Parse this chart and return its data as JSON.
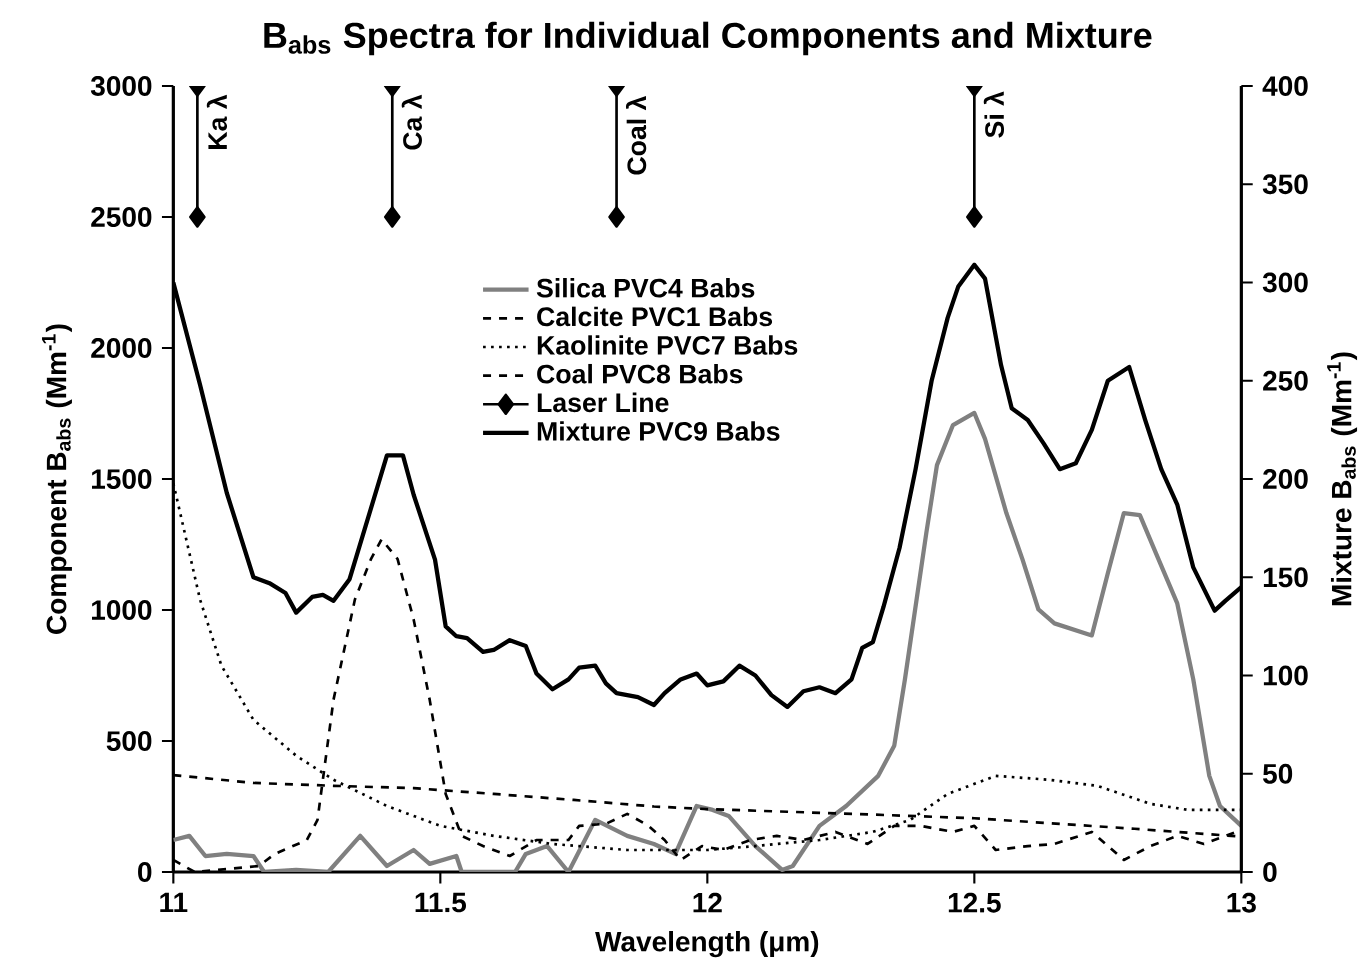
{
  "chart_data": {
    "type": "line",
    "title": "B$_{abs}$ Spectra for Individual Components and Mixture",
    "xlabel": "Wavelength (μm)",
    "ylabel": "Component B$_{abs}$ (Mm$^{-1}$)",
    "y2label": "Mixture B$_{abs}$ (Mm$^{-1}$)",
    "xlim": [
      11,
      13
    ],
    "xticks": [
      11,
      11.5,
      12,
      12.5,
      13
    ],
    "ylim": [
      0,
      3000
    ],
    "yticks": [
      0,
      500,
      1000,
      1500,
      2000,
      2500,
      3000
    ],
    "y2lim": [
      0,
      400
    ],
    "y2ticks": [
      0,
      50,
      100,
      150,
      200,
      250,
      300,
      350,
      400
    ],
    "legend": "top",
    "grid": false,
    "annotations": [
      {
        "text": "Ka λ",
        "x": 11.045,
        "y": 2830
      },
      {
        "text": "Ca λ",
        "x": 11.41,
        "y": 2830
      },
      {
        "text": "Coal λ",
        "x": 11.83,
        "y": 2780
      },
      {
        "text": "Si λ",
        "x": 12.5,
        "y": 2860
      }
    ],
    "series": [
      {
        "name": "Silica PVC4 Babs",
        "color": "#808080",
        "line_style": "solid",
        "marker": "none",
        "x": [
          11.0,
          11.03,
          11.06,
          11.1,
          11.15,
          11.17,
          11.23,
          11.29,
          11.35,
          11.4,
          11.45,
          11.48,
          11.53,
          11.54,
          11.64,
          11.66,
          11.7,
          11.74,
          11.79,
          11.85,
          11.9,
          11.94,
          11.98,
          12.01,
          12.04,
          12.09,
          12.14,
          12.16,
          12.21,
          12.26,
          12.32,
          12.35,
          12.37,
          12.41,
          12.43,
          12.46,
          12.5,
          12.52,
          12.56,
          12.59,
          12.62,
          12.65,
          12.72,
          12.75,
          12.78,
          12.81,
          12.84,
          12.88,
          12.91,
          12.94,
          12.96,
          13.0
        ],
        "values": [
          122,
          138,
          61,
          69,
          61,
          0,
          8,
          0,
          138,
          23,
          84,
          31,
          61,
          0,
          0,
          69,
          99,
          0,
          199,
          138,
          107,
          69,
          252,
          237,
          214,
          99,
          8,
          23,
          176,
          252,
          367,
          482,
          735,
          1293,
          1553,
          1706,
          1752,
          1653,
          1370,
          1194,
          1002,
          949,
          903,
          1140,
          1370,
          1362,
          1217,
          1025,
          735,
          367,
          252,
          176
        ]
      },
      {
        "name": "Calcite PVC1 Babs",
        "color": "#000000",
        "line_style": "dashed",
        "marker": "none",
        "x": [
          11.0,
          11.04,
          11.16,
          11.19,
          11.25,
          11.27,
          11.3,
          11.34,
          11.37,
          11.39,
          11.42,
          11.45,
          11.48,
          11.51,
          11.54,
          11.58,
          11.63,
          11.68,
          11.74,
          11.76,
          11.81,
          11.85,
          11.89,
          11.92,
          11.95,
          11.99,
          12.03,
          12.08,
          12.13,
          12.18,
          12.24,
          12.3,
          12.35,
          12.4,
          12.46,
          12.5,
          12.54,
          12.6,
          12.65,
          12.72,
          12.78,
          12.83,
          12.88,
          12.93,
          12.99
        ],
        "values": [
          46,
          0,
          23,
          69,
          122,
          199,
          658,
          1040,
          1194,
          1270,
          1194,
          964,
          658,
          298,
          138,
          99,
          61,
          122,
          122,
          176,
          184,
          222,
          176,
          122,
          46,
          99,
          84,
          122,
          138,
          122,
          153,
          107,
          176,
          176,
          153,
          176,
          84,
          99,
          107,
          153,
          46,
          99,
          138,
          107,
          153
        ]
      },
      {
        "name": "Kaolinite PVC7 Babs",
        "color": "#000000",
        "line_style": "dotted",
        "marker": "none",
        "x": [
          11.0,
          11.05,
          11.09,
          11.15,
          11.23,
          11.3,
          11.4,
          11.5,
          11.6,
          11.71,
          11.85,
          12.0,
          12.09,
          12.21,
          12.31,
          12.38,
          12.45,
          12.54,
          12.64,
          12.73,
          12.83,
          12.9,
          13.0
        ],
        "values": [
          1484,
          1040,
          788,
          581,
          444,
          352,
          252,
          176,
          138,
          107,
          84,
          84,
          99,
          122,
          153,
          199,
          298,
          367,
          352,
          329,
          260,
          237,
          237
        ]
      },
      {
        "name": "Coal PVC8 Babs",
        "color": "#000000",
        "line_style": "dashed",
        "marker": "none",
        "x": [
          11.0,
          11.15,
          11.3,
          11.45,
          11.6,
          11.75,
          11.9,
          12.0,
          12.15,
          12.3,
          12.5,
          12.65,
          12.8,
          12.9,
          13.0
        ],
        "values": [
          370,
          340,
          329,
          320,
          298,
          275,
          250,
          240,
          230,
          220,
          205,
          185,
          165,
          150,
          135
        ]
      },
      {
        "name": "Laser Line",
        "color": "#000000",
        "line_style": "solid",
        "marker": "diamond",
        "x": [
          11.045,
          11.045,
          null,
          11.41,
          11.41,
          null,
          11.83,
          11.83,
          null,
          12.5,
          12.5
        ],
        "values": [
          2500,
          3000,
          null,
          2500,
          3000,
          null,
          2500,
          3000,
          null,
          2500,
          3000
        ]
      },
      {
        "name": "Mixture PVC9 Babs",
        "color": "#000000",
        "line_style": "solid",
        "marker": "none",
        "axis": "y2",
        "x": [
          11.0,
          11.05,
          11.1,
          11.15,
          11.18,
          11.21,
          11.23,
          11.26,
          11.28,
          11.3,
          11.33,
          11.36,
          11.4,
          11.43,
          11.45,
          11.49,
          11.51,
          11.53,
          11.55,
          11.58,
          11.6,
          11.63,
          11.66,
          11.68,
          11.71,
          11.74,
          11.76,
          11.79,
          11.81,
          11.83,
          11.87,
          11.9,
          11.92,
          11.95,
          11.98,
          12.0,
          12.03,
          12.06,
          12.09,
          12.12,
          12.15,
          12.18,
          12.21,
          12.24,
          12.27,
          12.29,
          12.31,
          12.33,
          12.36,
          12.39,
          12.42,
          12.45,
          12.47,
          12.5,
          12.52,
          12.55,
          12.57,
          12.6,
          12.63,
          12.66,
          12.69,
          12.72,
          12.75,
          12.79,
          12.82,
          12.85,
          12.88,
          12.91,
          12.95,
          12.97,
          13.0
        ],
        "values": [
          300,
          248,
          193,
          150,
          147,
          142,
          132,
          140,
          141,
          138,
          149,
          176,
          212,
          212,
          192,
          159,
          125,
          120,
          119,
          112,
          113,
          118,
          115,
          101,
          93,
          98,
          104,
          105,
          96,
          91,
          89,
          85,
          91,
          98,
          101,
          95,
          97,
          105,
          100,
          90,
          84,
          92,
          94,
          91,
          98,
          114,
          117,
          135,
          165,
          205,
          250,
          282,
          298,
          309,
          302,
          258,
          236,
          230,
          218,
          205,
          208,
          225,
          250,
          257,
          230,
          205,
          187,
          155,
          133,
          138,
          145
        ]
      }
    ]
  }
}
